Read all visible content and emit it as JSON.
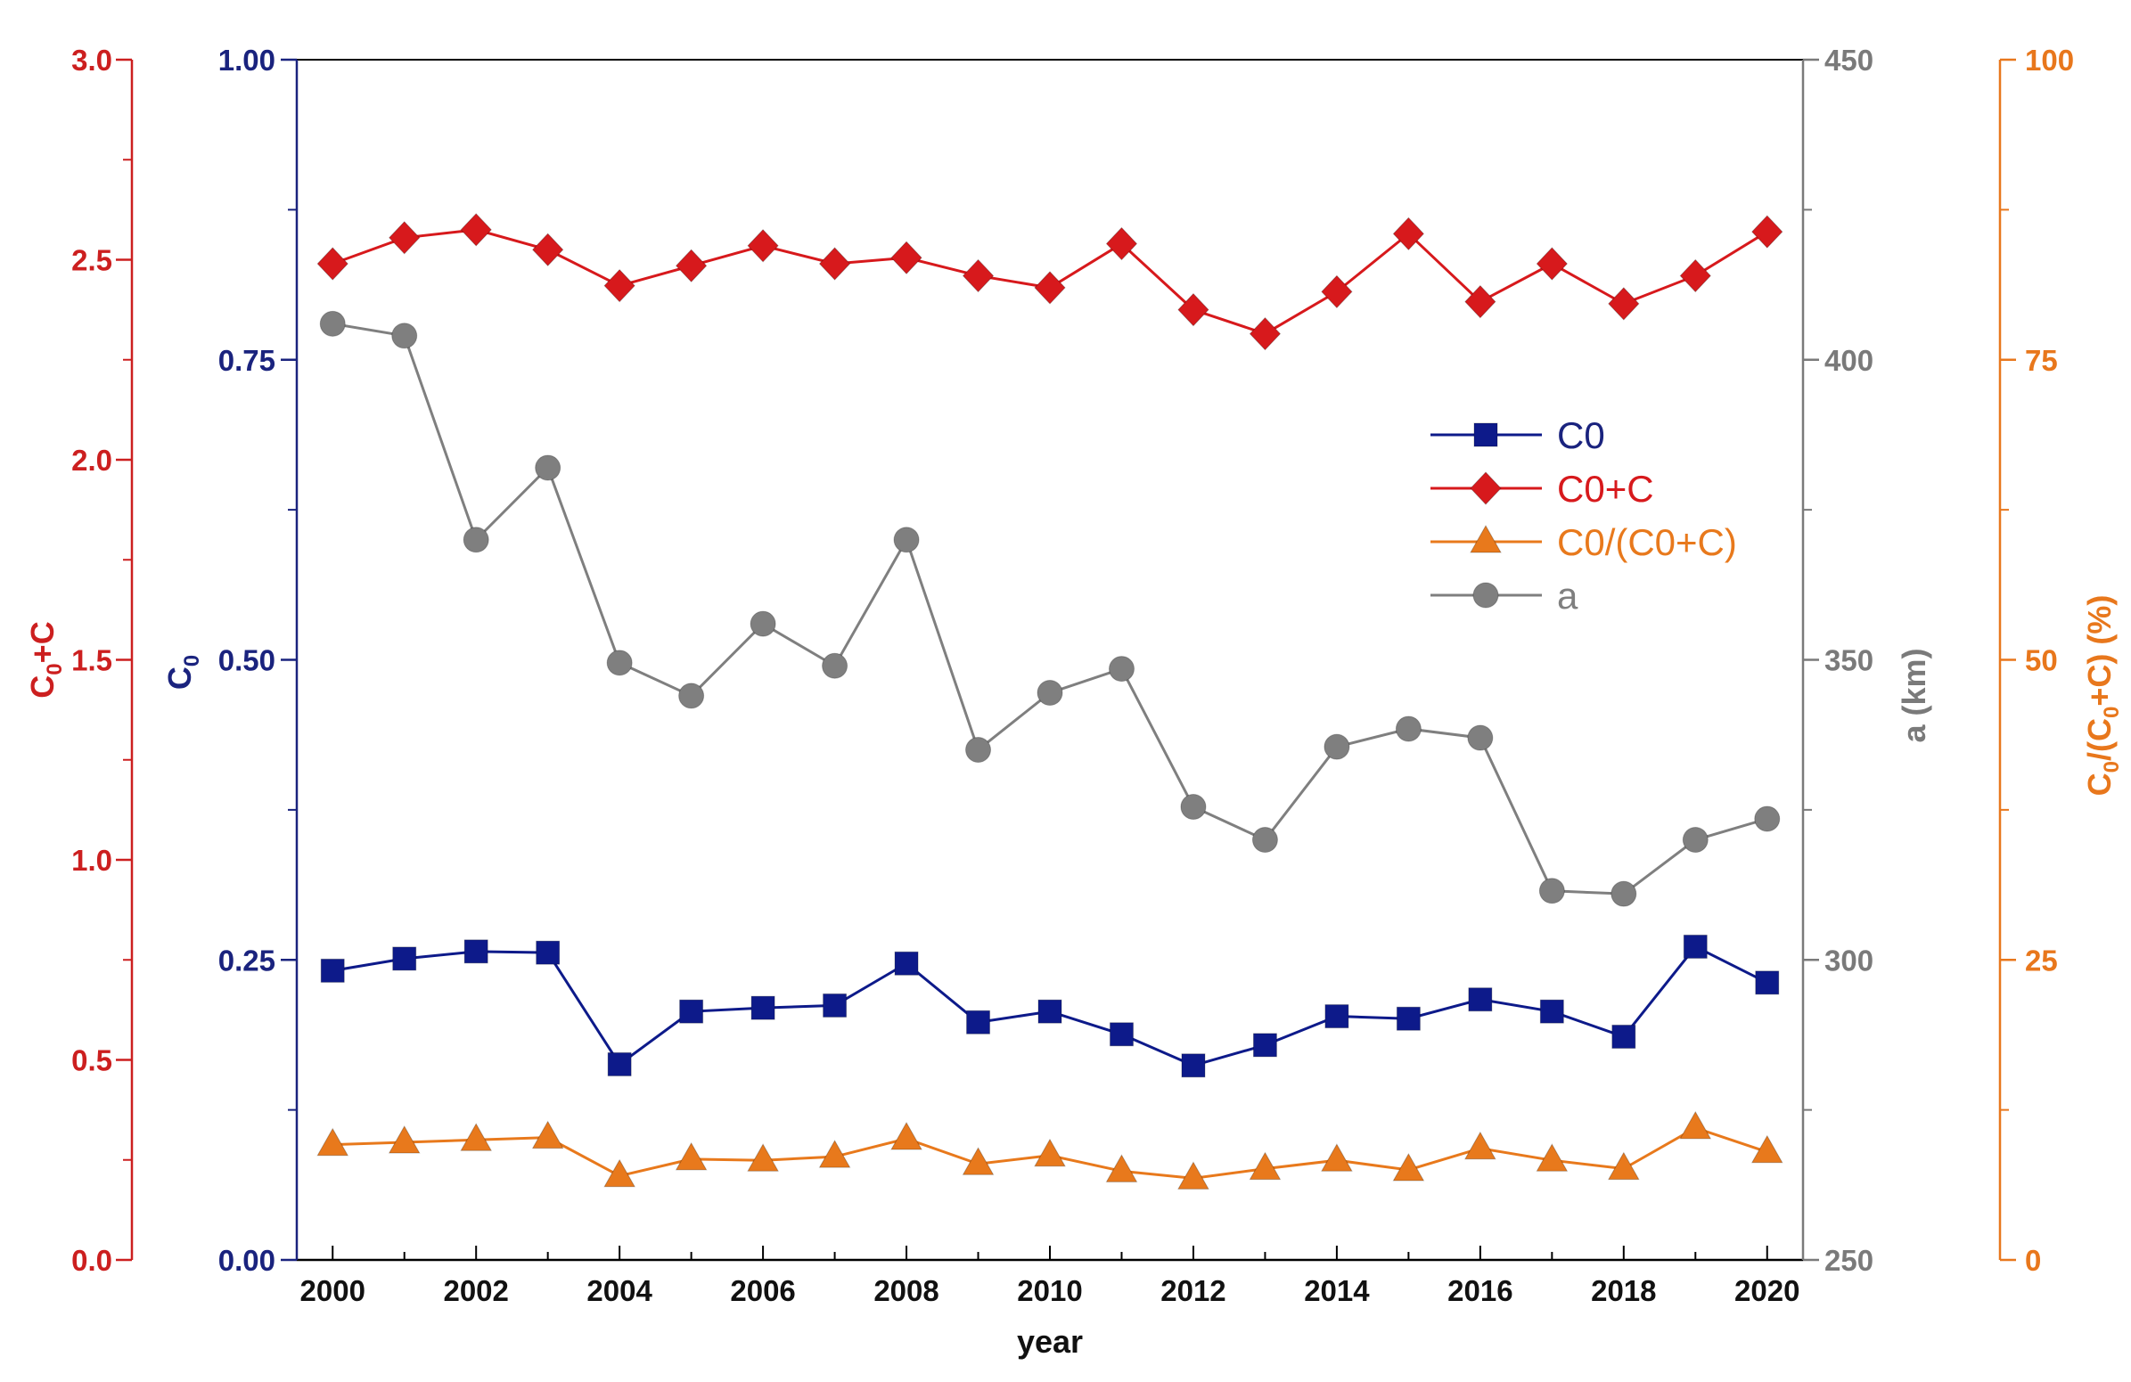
{
  "chart_data": {
    "type": "line",
    "xlabel": "year",
    "x": [
      2000,
      2001,
      2002,
      2003,
      2004,
      2005,
      2006,
      2007,
      2008,
      2009,
      2010,
      2011,
      2012,
      2013,
      2014,
      2015,
      2016,
      2017,
      2018,
      2019,
      2020
    ],
    "x_ticks": [
      "2000",
      "2002",
      "2004",
      "2006",
      "2008",
      "2010",
      "2012",
      "2014",
      "2016",
      "2018",
      "2020"
    ],
    "xlim": [
      1999.5,
      2020.5
    ],
    "axes": {
      "c0sum": {
        "label_base": "C",
        "label_sub": "0",
        "label_rest": "+C",
        "ylim": [
          0,
          3
        ],
        "ticks": [
          "0.0",
          "0.5",
          "1.0",
          "1.5",
          "2.0",
          "2.5",
          "3.0"
        ],
        "color": "#cc1f1f"
      },
      "c0": {
        "label_base": "C",
        "label_sub": "0",
        "ylim": [
          0,
          1
        ],
        "ticks": [
          "0.00",
          "0.25",
          "0.50",
          "0.75",
          "1.00"
        ],
        "color": "#1a237e"
      },
      "a": {
        "label": "a  (km)",
        "ylim": [
          250,
          450
        ],
        "ticks": [
          "250",
          "300",
          "350",
          "400",
          "450"
        ],
        "color": "#7a7a7a"
      },
      "ratio": {
        "label_pre": "C",
        "label_sub1": "0",
        "label_mid": "/(C",
        "label_sub2": "0",
        "label_post": "+C)  (%)",
        "ylim": [
          0,
          100
        ],
        "ticks": [
          "0",
          "25",
          "50",
          "75",
          "100"
        ],
        "color": "#e8771c"
      }
    },
    "series": [
      {
        "name": "C0",
        "axis": "c0",
        "color": "#0d1a8a",
        "marker": "square",
        "values": [
          0.241,
          0.251,
          0.257,
          0.256,
          0.163,
          0.207,
          0.21,
          0.212,
          0.247,
          0.198,
          0.207,
          0.188,
          0.162,
          0.179,
          0.203,
          0.201,
          0.217,
          0.207,
          0.186,
          0.261,
          0.231
        ]
      },
      {
        "name": "C0+C",
        "axis": "c0sum",
        "color": "#d7191c",
        "marker": "diamond",
        "values": [
          2.49,
          2.555,
          2.575,
          2.525,
          2.435,
          2.485,
          2.535,
          2.49,
          2.505,
          2.46,
          2.43,
          2.54,
          2.375,
          2.315,
          2.42,
          2.565,
          2.395,
          2.49,
          2.39,
          2.46,
          2.57
        ]
      },
      {
        "name": "C0/(C0+C)",
        "axis": "ratio",
        "color": "#e8791c",
        "marker": "triangle",
        "values": [
          9.6,
          9.8,
          10.0,
          10.2,
          7.0,
          8.4,
          8.3,
          8.6,
          10.1,
          8.0,
          8.7,
          7.4,
          6.8,
          7.6,
          8.3,
          7.5,
          9.3,
          8.3,
          7.6,
          11.0,
          9.0
        ]
      },
      {
        "name": "a",
        "axis": "a",
        "color": "#7f7f7f",
        "marker": "circle",
        "values": [
          406,
          404,
          370,
          382,
          349.5,
          344,
          356,
          349,
          370,
          335,
          344.5,
          348.5,
          325.5,
          320,
          335.5,
          338.5,
          337,
          311.5,
          311,
          320,
          323.5
        ]
      }
    ],
    "legend": [
      "C0",
      "C0+C",
      "C0/(C0+C)",
      "a"
    ],
    "legend_position": "center-right"
  }
}
